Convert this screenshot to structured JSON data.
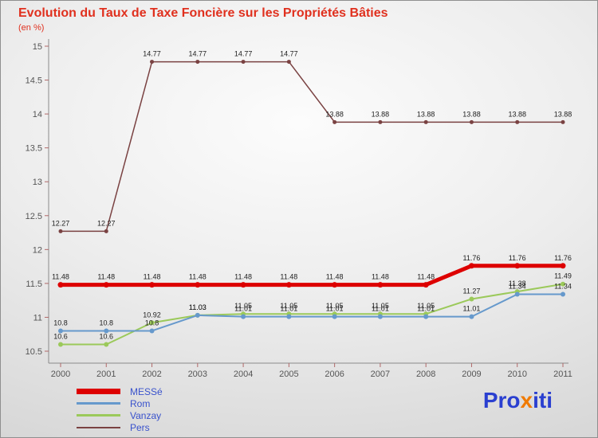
{
  "chart_data": {
    "type": "line",
    "title": "Evolution du Taux de Taxe Foncière sur les Propriétés Bâties",
    "subtitle": "(en %)",
    "categories": [
      "2000",
      "2001",
      "2002",
      "2003",
      "2004",
      "2005",
      "2006",
      "2007",
      "2008",
      "2009",
      "2010",
      "2011"
    ],
    "xlabel": "",
    "ylabel": "(en %)",
    "ylim": [
      10.5,
      15
    ],
    "yticks": [
      "10.5",
      "11",
      "11.5",
      "12",
      "12.5",
      "13",
      "13.5",
      "14",
      "14.5",
      "15"
    ],
    "grid": false,
    "legend_position": "bottom-left",
    "series": [
      {
        "name": "MESSé",
        "color": "#dd0000",
        "line_width": 5,
        "marker_radius": 3.5,
        "values": [
          11.48,
          11.48,
          11.48,
          11.48,
          11.48,
          11.48,
          11.48,
          11.48,
          11.48,
          11.76,
          11.76,
          11.76
        ]
      },
      {
        "name": "Rom",
        "color": "#6699cc",
        "line_width": 2,
        "marker_radius": 3,
        "values": [
          10.8,
          10.8,
          10.8,
          11.03,
          11.01,
          11.01,
          11.01,
          11.01,
          11.01,
          11.01,
          11.34,
          11.34
        ]
      },
      {
        "name": "Vanzay",
        "color": "#9bc95a",
        "line_width": 2,
        "marker_radius": 3,
        "values": [
          10.6,
          10.6,
          10.92,
          11.03,
          11.05,
          11.05,
          11.05,
          11.05,
          11.05,
          11.27,
          11.38,
          11.49
        ]
      },
      {
        "name": "Pers",
        "color": "#7a4242",
        "line_width": 1.5,
        "marker_radius": 2.5,
        "values": [
          12.27,
          12.27,
          14.77,
          14.77,
          14.77,
          14.77,
          13.88,
          13.88,
          13.88,
          13.88,
          13.88,
          13.88
        ]
      }
    ]
  },
  "logo": {
    "pro": "Pro",
    "x": "x",
    "iti": "iti"
  },
  "colors": {
    "title": "#e0301e",
    "axis": "#8a8a8a",
    "tick": "#b06868",
    "tick_label": "#555555",
    "data_label": "#222222",
    "legend_text": "#3952cc",
    "logo_blue": "#2a3fd0",
    "logo_orange": "#f07a00"
  }
}
